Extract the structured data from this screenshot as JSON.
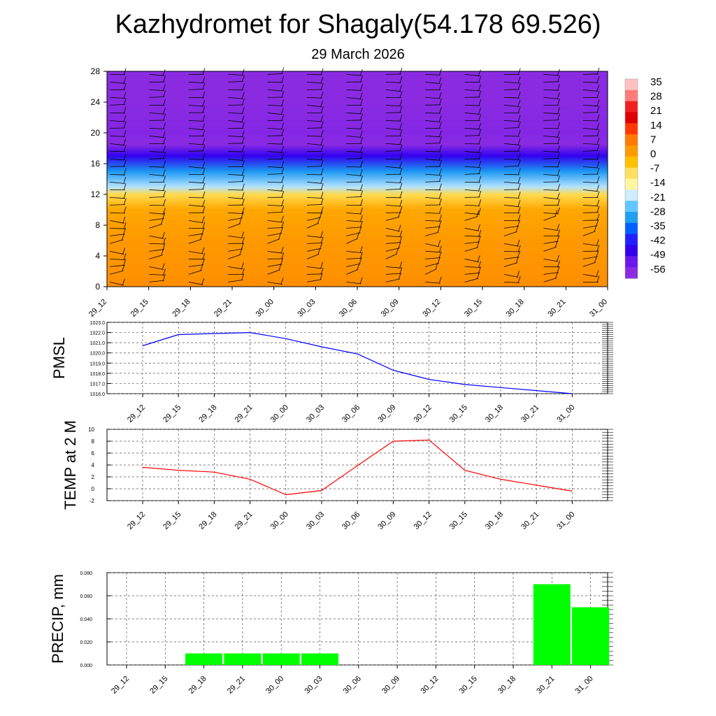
{
  "title": "Kazhydromet for Shagaly(54.178 69.526)",
  "subtitle": "29 March 2026",
  "time_labels": [
    "29_12",
    "29_15",
    "29_18",
    "29_21",
    "30_00",
    "30_03",
    "30_06",
    "30_09",
    "30_12",
    "30_15",
    "30_18",
    "30_21",
    "31_00"
  ],
  "colors": {
    "pmsl_line": "#0000ff",
    "temp_line": "#ff0000",
    "precip_bar": "#00ff00",
    "grid": "#555555"
  },
  "chart_data": [
    {
      "type": "heatmap",
      "name": "cross-section",
      "x": [
        "29_12",
        "29_15",
        "29_18",
        "29_21",
        "30_00",
        "30_03",
        "30_06",
        "30_09",
        "30_12",
        "30_15",
        "30_18",
        "30_21",
        "31_00"
      ],
      "ylim": [
        0,
        28
      ],
      "yticks": [
        0,
        4,
        8,
        12,
        16,
        20,
        24,
        28
      ],
      "colorbar_labels": [
        "35",
        "28",
        "21",
        "14",
        "7",
        "0",
        "-7",
        "-14",
        "-21",
        "-28",
        "-35",
        "-42",
        "-49",
        "-56"
      ],
      "colorbar_colors": [
        "#ffc0c0",
        "#ff7a7a",
        "#f02020",
        "#e00000",
        "#ff3a00",
        "#ff7a00",
        "#ff9a00",
        "#ffc000",
        "#ffe060",
        "#fff6a0",
        "#d0ecff",
        "#60c8ff",
        "#20a0f0",
        "#0060ff",
        "#2020ff",
        "#3300ee",
        "#6a18ee",
        "#8a2be2"
      ],
      "vertical_profile": [
        {
          "y": 0,
          "value": 5
        },
        {
          "y": 2,
          "value": 4
        },
        {
          "y": 6,
          "value": 3
        },
        {
          "y": 10,
          "value": 1
        },
        {
          "y": 12,
          "value": -7
        },
        {
          "y": 13,
          "value": -20
        },
        {
          "y": 15,
          "value": -30
        },
        {
          "y": 17,
          "value": -45
        },
        {
          "y": 18.5,
          "value": -56
        },
        {
          "y": 20,
          "value": -55
        },
        {
          "y": 24,
          "value": -58
        },
        {
          "y": 28,
          "value": -56
        }
      ]
    },
    {
      "type": "line",
      "ylabel": "PMSL",
      "x": [
        "29_12",
        "29_15",
        "29_18",
        "29_21",
        "30_00",
        "30_03",
        "30_06",
        "30_09",
        "30_12",
        "30_15",
        "30_18",
        "30_21",
        "31_00"
      ],
      "series": [
        {
          "values": [
            1020.7,
            1021.8,
            1021.9,
            1022.0,
            1021.4,
            1020.6,
            1019.9,
            1018.3,
            1017.4,
            1016.9,
            1016.6,
            1016.3,
            1016.0
          ]
        }
      ],
      "ylim": [
        1016.0,
        1023.0
      ],
      "yticks": [
        "1016.0",
        "1017.0",
        "1018.0",
        "1019.0",
        "1020.0",
        "1021.0",
        "1022.0",
        "1023.0"
      ]
    },
    {
      "type": "line",
      "ylabel": "TEMP at 2 M",
      "x": [
        "29_12",
        "29_15",
        "29_18",
        "29_21",
        "30_00",
        "30_03",
        "30_06",
        "30_09",
        "30_12",
        "30_15",
        "30_18",
        "30_21",
        "31_00"
      ],
      "series": [
        {
          "values": [
            3.6,
            3.1,
            2.8,
            1.6,
            -1.0,
            -0.3,
            3.9,
            8.0,
            8.2,
            3.1,
            1.6,
            0.6,
            -0.4
          ]
        }
      ],
      "ylim": [
        -2,
        10
      ],
      "yticks": [
        "-2",
        "0",
        "2",
        "4",
        "6",
        "8",
        "10"
      ]
    },
    {
      "type": "bar",
      "ylabel": "PRECIP, mm",
      "categories": [
        "29_12",
        "29_15",
        "29_18",
        "29_21",
        "30_00",
        "30_03",
        "30_06",
        "30_09",
        "30_12",
        "30_15",
        "30_18",
        "30_21",
        "31_00"
      ],
      "values": [
        0,
        0,
        0.01,
        0.01,
        0.01,
        0.01,
        0,
        0,
        0,
        0,
        0,
        0.07,
        0.05
      ],
      "ylim": [
        0,
        0.08
      ],
      "yticks": [
        "0.000",
        "0.020",
        "0.040",
        "0.060",
        "0.080"
      ]
    }
  ]
}
